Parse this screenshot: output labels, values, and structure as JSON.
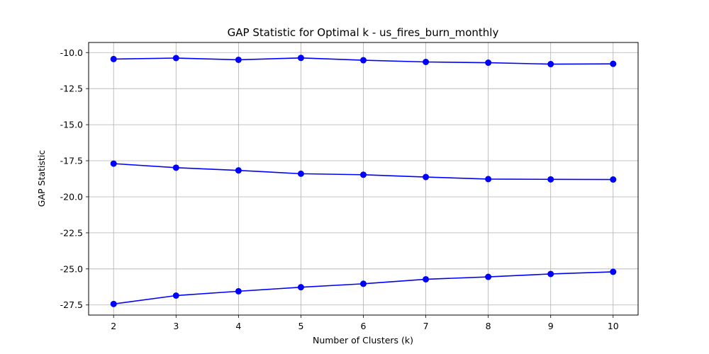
{
  "chart_data": {
    "type": "line",
    "title": "GAP Statistic for Optimal k - us_fires_burn_monthly",
    "xlabel": "Number of Clusters (k)",
    "ylabel": "GAP Statistic",
    "x": [
      2,
      3,
      4,
      5,
      6,
      7,
      8,
      9,
      10
    ],
    "x_ticks": [
      "2",
      "3",
      "4",
      "5",
      "6",
      "7",
      "8",
      "9",
      "10"
    ],
    "y_ticks": [
      "-10.0",
      "-12.5",
      "-15.0",
      "-17.5",
      "-20.0",
      "-22.5",
      "-25.0",
      "-27.5"
    ],
    "y_tick_values": [
      -10.0,
      -12.5,
      -15.0,
      -17.5,
      -20.0,
      -22.5,
      -25.0,
      -27.5
    ],
    "xlim": [
      1.6,
      10.4
    ],
    "ylim": [
      -28.2,
      -9.3
    ],
    "grid": true,
    "series": [
      {
        "values": [
          -10.45,
          -10.38,
          -10.5,
          -10.37,
          -10.53,
          -10.65,
          -10.7,
          -10.8,
          -10.78
        ],
        "color": "#0000ff"
      },
      {
        "values": [
          -17.7,
          -17.98,
          -18.17,
          -18.4,
          -18.47,
          -18.63,
          -18.77,
          -18.79,
          -18.8
        ],
        "color": "#0000ff"
      },
      {
        "values": [
          -27.43,
          -26.85,
          -26.55,
          -26.27,
          -26.03,
          -25.72,
          -25.55,
          -25.35,
          -25.2
        ],
        "color": "#0000ff"
      }
    ]
  }
}
